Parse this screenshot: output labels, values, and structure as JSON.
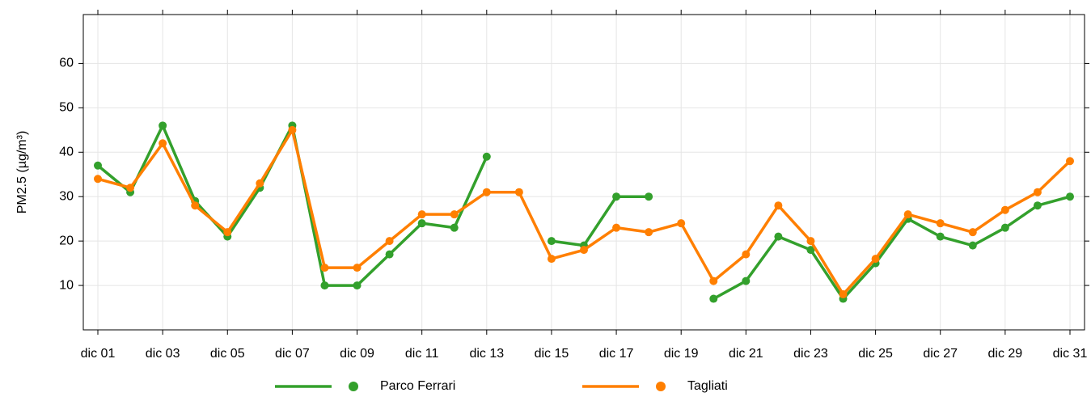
{
  "chart_data": {
    "type": "line",
    "y_label": "PM2.5 (µg/m³)",
    "categories": [
      "dic 01",
      null,
      "dic 03",
      null,
      "dic 05",
      null,
      "dic 07",
      null,
      "dic 09",
      null,
      "dic 11",
      null,
      "dic 13",
      null,
      "dic 15",
      null,
      "dic 17",
      null,
      "dic 19",
      null,
      "dic 21",
      null,
      "dic 23",
      null,
      "dic 25",
      null,
      "dic 27",
      null,
      "dic 29",
      null,
      "dic 31"
    ],
    "series": [
      {
        "name": "Parco Ferrari",
        "color": "#33a02c",
        "values": [
          37,
          31,
          46,
          29,
          21,
          32,
          46,
          10,
          10,
          17,
          24,
          23,
          39,
          null,
          20,
          19,
          30,
          30,
          null,
          7,
          11,
          21,
          18,
          7,
          15,
          25,
          21,
          19,
          23,
          28,
          30
        ]
      },
      {
        "name": "Tagliati",
        "color": "#ff7f00",
        "values": [
          34,
          32,
          42,
          28,
          22,
          33,
          45,
          14,
          14,
          20,
          26,
          26,
          31,
          31,
          16,
          18,
          23,
          22,
          24,
          11,
          17,
          28,
          20,
          8,
          16,
          26,
          24,
          22,
          27,
          31,
          38
        ]
      }
    ],
    "ylim": [
      0,
      71
    ],
    "yticks": [
      10,
      20,
      30,
      40,
      50,
      60
    ],
    "grid": true,
    "legend": "bottom"
  }
}
